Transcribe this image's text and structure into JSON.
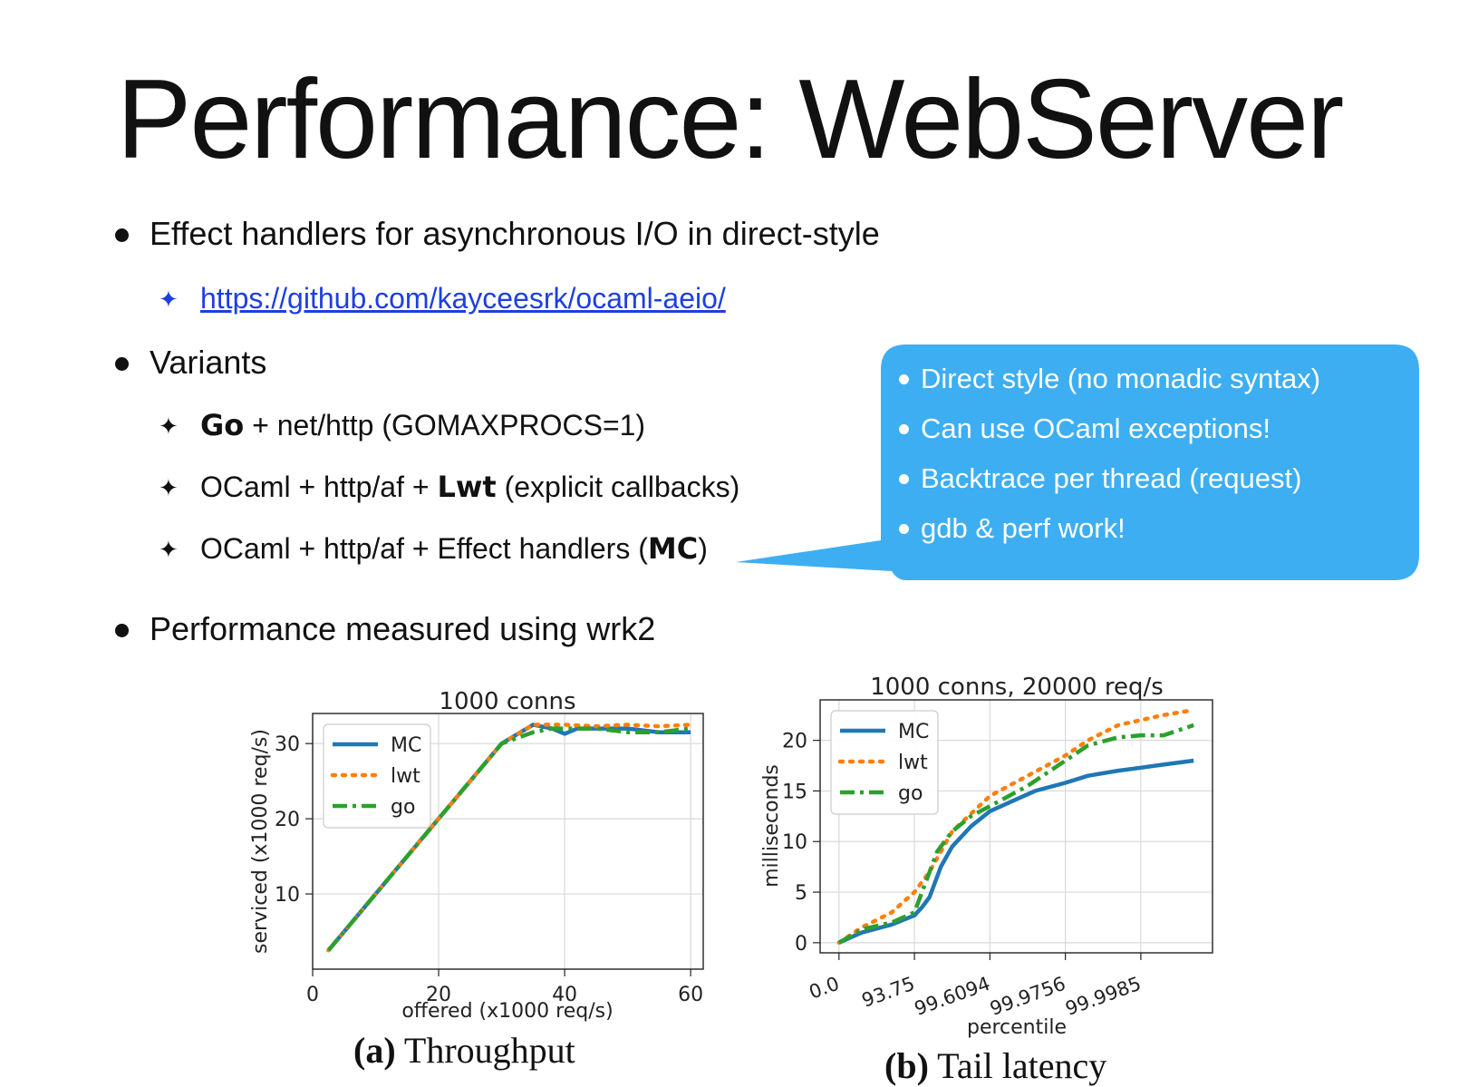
{
  "slide": {
    "title": "Performance: WebServer",
    "bullets": [
      "Effect handlers for asynchronous I/O in direct-style",
      "Variants",
      "Performance measured using wrk2"
    ],
    "link": "https://github.com/kayceesrk/ocaml-aeio/",
    "variants": [
      {
        "bold": "Go",
        "rest": " + net/http (GOMAXPROCS=1)"
      },
      {
        "pre": "OCaml + http/af + ",
        "bold": "Lwt",
        "post": " (explicit callbacks)"
      },
      {
        "pre": "OCaml + http/af + Effect handlers (",
        "bold": "MC",
        "post": ")"
      }
    ]
  },
  "callout": {
    "color": "#3daef2",
    "items": [
      "Direct style (no monadic syntax)",
      "Can use OCaml exceptions!",
      "Backtrace per thread (request)",
      "gdb & perf work!"
    ]
  },
  "captions": {
    "a_label": "(a)",
    "a_text": "Throughput",
    "b_label": "(b)",
    "b_text": "Tail latency"
  },
  "chart_data": [
    {
      "type": "line",
      "title": "1000 conns",
      "xlabel": "offered (x1000 req/s)",
      "ylabel": "serviced (x1000 req/s)",
      "xlim": [
        0,
        62
      ],
      "ylim": [
        0,
        34
      ],
      "xticks": [
        0,
        20,
        40,
        60
      ],
      "yticks": [
        10,
        20,
        30
      ],
      "grid": true,
      "legend": "top-left",
      "series": [
        {
          "name": "MC",
          "color": "#1f77b4",
          "dash": "solid",
          "x": [
            2.5,
            10,
            20,
            30,
            35,
            38,
            40,
            42,
            45,
            50,
            55,
            60
          ],
          "y": [
            2.5,
            10,
            20,
            30,
            32.5,
            32,
            31.3,
            32,
            32,
            32,
            31.5,
            31.5
          ]
        },
        {
          "name": "lwt",
          "color": "#ff7f0e",
          "dash": "dotted",
          "x": [
            2.5,
            10,
            20,
            30,
            35,
            40,
            45,
            50,
            55,
            60
          ],
          "y": [
            2.5,
            10,
            20,
            30,
            32.5,
            32.5,
            32.3,
            32.5,
            32.3,
            32.5
          ]
        },
        {
          "name": "go",
          "color": "#2ca02c",
          "dash": "dashdot",
          "x": [
            2.5,
            10,
            20,
            30,
            35,
            38,
            40,
            45,
            50,
            55,
            60
          ],
          "y": [
            2.5,
            10,
            20,
            30,
            31.5,
            32,
            32,
            32,
            31.5,
            31.5,
            32
          ]
        }
      ]
    },
    {
      "type": "line",
      "title": "1000 conns, 20000 req/s",
      "xlabel": "percentile",
      "ylabel": "milliseconds",
      "xticks": [
        "0.0",
        "93.75",
        "99.6094",
        "99.9756",
        "99.9985"
      ],
      "yticks": [
        0,
        5,
        10,
        15,
        20
      ],
      "ylim": [
        -1,
        24
      ],
      "grid": true,
      "legend": "top-left",
      "series": [
        {
          "name": "MC",
          "color": "#1f77b4",
          "dash": "solid",
          "x": [
            0,
            0.3,
            0.7,
            1,
            1.1,
            1.2,
            1.35,
            1.5,
            1.75,
            2,
            2.3,
            2.6,
            3,
            3.3,
            3.7,
            4,
            4.3,
            4.7
          ],
          "y": [
            0,
            1,
            1.8,
            2.7,
            3.5,
            4.5,
            7.5,
            9.5,
            11.5,
            13,
            14,
            15,
            15.8,
            16.5,
            17,
            17.3,
            17.6,
            18
          ]
        },
        {
          "name": "lwt",
          "color": "#ff7f0e",
          "dash": "dotted",
          "x": [
            0,
            0.3,
            0.7,
            1,
            1.2,
            1.5,
            2,
            2.5,
            3,
            3.3,
            3.7,
            4,
            4.3,
            4.7
          ],
          "y": [
            0,
            1.5,
            3,
            5,
            7,
            11,
            14.5,
            16.5,
            18.5,
            20,
            21.5,
            22,
            22.5,
            23
          ]
        },
        {
          "name": "go",
          "color": "#2ca02c",
          "dash": "dashdot",
          "x": [
            0,
            0.3,
            0.7,
            1,
            1.15,
            1.3,
            1.5,
            1.75,
            2,
            2.5,
            3,
            3.3,
            3.7,
            4,
            4.3,
            4.5,
            4.7
          ],
          "y": [
            0,
            1.3,
            2,
            3,
            6,
            9,
            11,
            12.5,
            13.5,
            15.5,
            18,
            19.5,
            20.3,
            20.5,
            20.5,
            21,
            21.5
          ]
        }
      ]
    }
  ]
}
